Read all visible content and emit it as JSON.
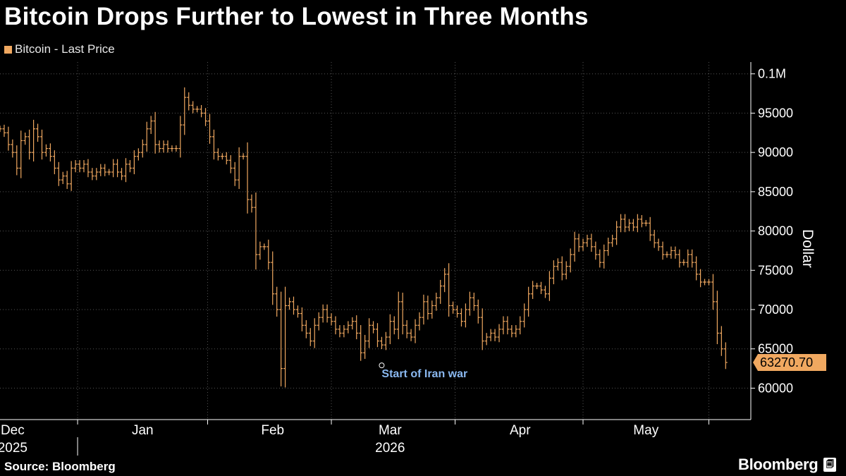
{
  "header": {
    "title": "Bitcoin Drops Further to Lowest in Three Months"
  },
  "footer": {
    "source": "Source: Bloomberg",
    "brand": "Bloomberg",
    "brand_badge": "🗐"
  },
  "chart_data": {
    "type": "line",
    "style": "ohlc-bars",
    "series": [
      {
        "name": "Bitcoin - Last Price",
        "color": "#f0a860",
        "points": [
          [
            -3,
            93000
          ],
          [
            -2,
            92500
          ],
          [
            -1,
            91000
          ],
          [
            0,
            90000
          ],
          [
            1,
            88000
          ],
          [
            2,
            91500
          ],
          [
            3,
            92000
          ],
          [
            4,
            90000
          ],
          [
            5,
            93000
          ],
          [
            6,
            92000
          ],
          [
            7,
            90000
          ],
          [
            8,
            90500
          ],
          [
            9,
            89500
          ],
          [
            10,
            88000
          ],
          [
            11,
            86500
          ],
          [
            12,
            87000
          ],
          [
            13,
            86000
          ],
          [
            14,
            88000
          ],
          [
            15,
            88500
          ],
          [
            16,
            88000
          ],
          [
            17,
            88500
          ],
          [
            18,
            87500
          ],
          [
            19,
            87000
          ],
          [
            20,
            87500
          ],
          [
            21,
            88000
          ],
          [
            22,
            87500
          ],
          [
            23,
            87500
          ],
          [
            24,
            88500
          ],
          [
            25,
            87500
          ],
          [
            26,
            87000
          ],
          [
            27,
            88500
          ],
          [
            28,
            88000
          ],
          [
            29,
            89500
          ],
          [
            30,
            90000
          ],
          [
            31,
            91000
          ],
          [
            32,
            93000
          ],
          [
            33,
            94000
          ],
          [
            34,
            91000
          ],
          [
            35,
            90500
          ],
          [
            36,
            91000
          ],
          [
            37,
            90500
          ],
          [
            38,
            90500
          ],
          [
            39,
            90500
          ],
          [
            40,
            93500
          ],
          [
            41,
            97000
          ],
          [
            42,
            96000
          ],
          [
            43,
            95500
          ],
          [
            44,
            95500
          ],
          [
            45,
            95000
          ],
          [
            46,
            94000
          ],
          [
            47,
            92000
          ],
          [
            48,
            90000
          ],
          [
            49,
            89500
          ],
          [
            50,
            89500
          ],
          [
            51,
            89000
          ],
          [
            52,
            88000
          ],
          [
            53,
            86500
          ],
          [
            54,
            89500
          ],
          [
            55,
            89500
          ],
          [
            56,
            84000
          ],
          [
            57,
            83000
          ],
          [
            58,
            77000
          ],
          [
            59,
            78000
          ],
          [
            60,
            78000
          ],
          [
            61,
            76000
          ],
          [
            62,
            72000
          ],
          [
            63,
            70000
          ],
          [
            64,
            62500
          ],
          [
            65,
            70500
          ],
          [
            66,
            71000
          ],
          [
            67,
            70000
          ],
          [
            68,
            69500
          ],
          [
            69,
            68000
          ],
          [
            70,
            67000
          ],
          [
            71,
            66000
          ],
          [
            72,
            68000
          ],
          [
            73,
            69000
          ],
          [
            74,
            70000
          ],
          [
            75,
            69000
          ],
          [
            76,
            68500
          ],
          [
            77,
            67500
          ],
          [
            78,
            67000
          ],
          [
            79,
            67500
          ],
          [
            80,
            68000
          ],
          [
            81,
            68500
          ],
          [
            82,
            67000
          ],
          [
            83,
            64500
          ],
          [
            84,
            66000
          ],
          [
            85,
            68000
          ],
          [
            86,
            67500
          ],
          [
            87,
            66000
          ],
          [
            88,
            65500
          ],
          [
            89,
            66500
          ],
          [
            90,
            68500
          ],
          [
            91,
            67500
          ],
          [
            92,
            71000
          ],
          [
            93,
            68000
          ],
          [
            94,
            67000
          ],
          [
            95,
            66500
          ],
          [
            96,
            68000
          ],
          [
            97,
            69000
          ],
          [
            98,
            71000
          ],
          [
            99,
            69500
          ],
          [
            100,
            70500
          ],
          [
            101,
            71500
          ],
          [
            102,
            73000
          ],
          [
            103,
            74500
          ],
          [
            104,
            70500
          ],
          [
            105,
            70000
          ],
          [
            106,
            69500
          ],
          [
            107,
            68500
          ],
          [
            108,
            70000
          ],
          [
            109,
            71500
          ],
          [
            110,
            70500
          ],
          [
            111,
            69000
          ],
          [
            112,
            66000
          ],
          [
            113,
            66500
          ],
          [
            114,
            67000
          ],
          [
            115,
            66500
          ],
          [
            116,
            67500
          ],
          [
            117,
            68500
          ],
          [
            118,
            67500
          ],
          [
            119,
            67000
          ],
          [
            120,
            67500
          ],
          [
            121,
            68500
          ],
          [
            122,
            70000
          ],
          [
            123,
            72000
          ],
          [
            124,
            73000
          ],
          [
            125,
            73000
          ],
          [
            126,
            72500
          ],
          [
            127,
            72000
          ],
          [
            128,
            74000
          ],
          [
            129,
            75500
          ],
          [
            130,
            76000
          ],
          [
            131,
            74500
          ],
          [
            132,
            75500
          ],
          [
            133,
            77000
          ],
          [
            134,
            79000
          ],
          [
            135,
            78000
          ],
          [
            136,
            78500
          ],
          [
            137,
            79000
          ],
          [
            138,
            78000
          ],
          [
            139,
            77000
          ],
          [
            140,
            76000
          ],
          [
            141,
            77500
          ],
          [
            142,
            78500
          ],
          [
            143,
            79000
          ],
          [
            144,
            80500
          ],
          [
            145,
            81500
          ],
          [
            146,
            80500
          ],
          [
            147,
            81000
          ],
          [
            148,
            80500
          ],
          [
            149,
            81500
          ],
          [
            150,
            81000
          ],
          [
            151,
            81000
          ],
          [
            152,
            79500
          ],
          [
            153,
            78500
          ],
          [
            154,
            78000
          ],
          [
            155,
            77000
          ],
          [
            156,
            77000
          ],
          [
            157,
            77500
          ],
          [
            158,
            77000
          ],
          [
            159,
            76000
          ],
          [
            160,
            76000
          ],
          [
            161,
            77000
          ],
          [
            162,
            76000
          ],
          [
            163,
            74500
          ],
          [
            164,
            73500
          ],
          [
            165,
            73500
          ],
          [
            166,
            73500
          ],
          [
            167,
            71000
          ],
          [
            168,
            67000
          ],
          [
            169,
            65000
          ],
          [
            170,
            63270.7
          ]
        ]
      }
    ],
    "x_axis": {
      "ticks": [
        {
          "label": "Dec",
          "x": 0
        },
        {
          "label": "Jan",
          "x": 31
        },
        {
          "label": "Feb",
          "x": 62
        },
        {
          "label": "Mar",
          "x": 90
        },
        {
          "label": "Apr",
          "x": 121
        },
        {
          "label": "May",
          "x": 151
        }
      ],
      "year_labels": [
        {
          "label": "2025",
          "x": 0
        },
        {
          "label": "2026",
          "x": 90
        }
      ],
      "range": [
        -3,
        176
      ]
    },
    "y_axis": {
      "label": "Dollar",
      "ticks": [
        {
          "label": "0.1M",
          "value": 100000
        },
        {
          "label": "95000",
          "value": 95000
        },
        {
          "label": "90000",
          "value": 90000
        },
        {
          "label": "85000",
          "value": 85000
        },
        {
          "label": "80000",
          "value": 80000
        },
        {
          "label": "75000",
          "value": 75000
        },
        {
          "label": "70000",
          "value": 70000
        },
        {
          "label": "65000",
          "value": 65000
        },
        {
          "label": "60000",
          "value": 60000
        }
      ],
      "range": [
        56000,
        101500
      ],
      "position": "right"
    },
    "grid": true,
    "legend_position": "top-left",
    "annotations": [
      {
        "text": "Start of Iran war",
        "x": 88,
        "y": 62900
      }
    ],
    "last_value": {
      "label": "63270.70",
      "value": 63270.7
    }
  }
}
